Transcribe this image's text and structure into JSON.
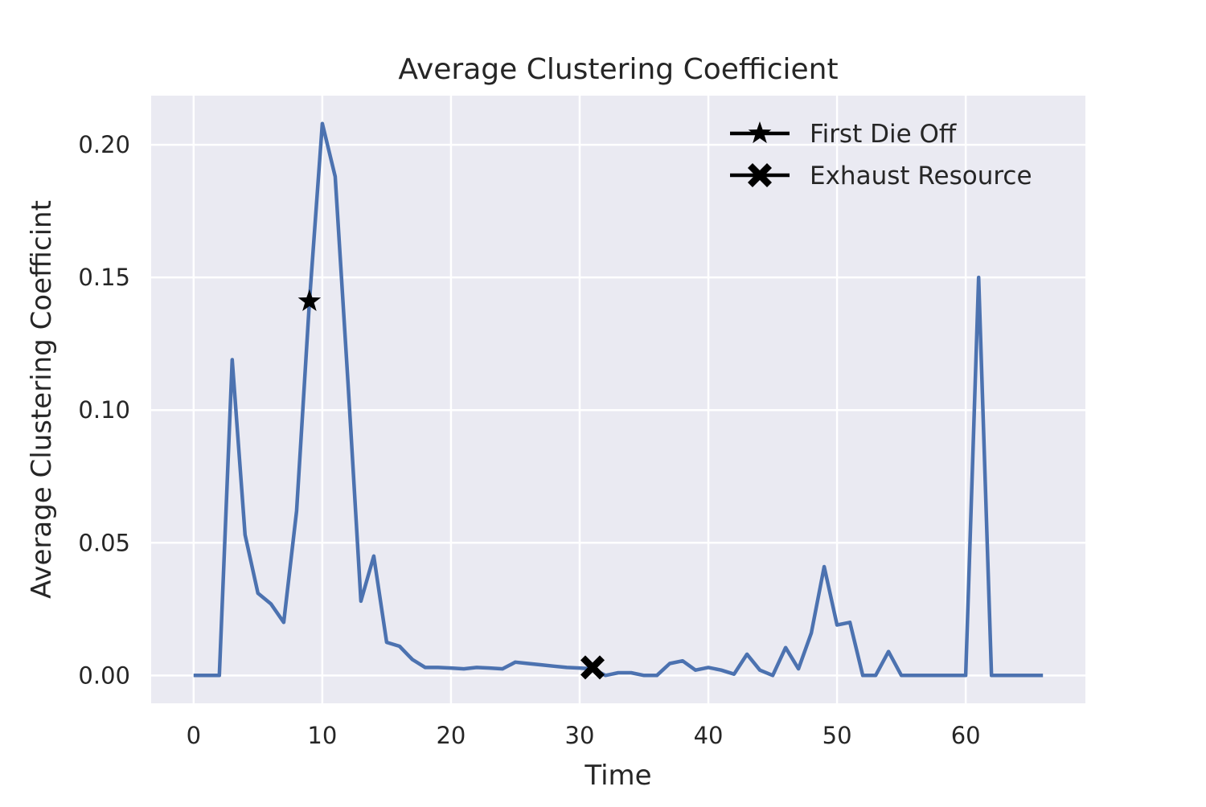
{
  "chart_data": {
    "type": "line",
    "title": "Average Clustering Coefficient",
    "xlabel": "Time",
    "ylabel": "Average Clustering Coefficint",
    "xlim": [
      -3.3,
      69.3
    ],
    "ylim": [
      -0.0105,
      0.2185
    ],
    "xticks": [
      0,
      10,
      20,
      30,
      40,
      50,
      60
    ],
    "xtick_labels": [
      "0",
      "10",
      "20",
      "30",
      "40",
      "50",
      "60"
    ],
    "yticks": [
      0.0,
      0.05,
      0.1,
      0.15,
      0.2
    ],
    "ytick_labels": [
      "0.00",
      "0.05",
      "0.10",
      "0.15",
      "0.20"
    ],
    "grid": true,
    "legend_position": "top-right",
    "colors": {
      "line": "#4c72b0",
      "background": "#eaeaf2",
      "grid": "#ffffff",
      "marker": "#000000"
    },
    "series": [
      {
        "x": [
          0,
          1,
          2,
          3,
          4,
          5,
          6,
          7,
          8,
          9,
          10,
          11,
          12,
          13,
          14,
          15,
          16,
          17,
          18,
          19,
          20,
          21,
          22,
          23,
          24,
          25,
          26,
          27,
          28,
          29,
          30,
          31,
          32,
          33,
          34,
          35,
          36,
          37,
          38,
          39,
          40,
          41,
          42,
          43,
          44,
          45,
          46,
          47,
          48,
          49,
          50,
          51,
          52,
          53,
          54,
          55,
          56,
          57,
          58,
          59,
          60,
          61,
          62,
          63,
          64,
          65,
          66
        ],
        "y": [
          0,
          0,
          0,
          0.119,
          0.053,
          0.031,
          0.027,
          0.02,
          0.062,
          0.141,
          0.208,
          0.188,
          0.11,
          0.028,
          0.045,
          0.0125,
          0.011,
          0.006,
          0.003,
          0.003,
          0.0028,
          0.0025,
          0.003,
          0.0028,
          0.0025,
          0.005,
          0.0045,
          0.004,
          0.0035,
          0.003,
          0.0028,
          0.0025,
          0,
          0.001,
          0.001,
          0,
          0,
          0.0045,
          0.0055,
          0.002,
          0.003,
          0.002,
          0.0005,
          0.008,
          0.002,
          0,
          0.0105,
          0.0025,
          0.016,
          0.041,
          0.019,
          0.02,
          0,
          0,
          0.009,
          0,
          0,
          0,
          0,
          0,
          0,
          0.15,
          0,
          0,
          0,
          0,
          0
        ]
      }
    ],
    "markers": [
      {
        "name": "First Die Off",
        "symbol": "star",
        "x": 9,
        "y": 0.141
      },
      {
        "name": "Exhaust Resource",
        "symbol": "x",
        "x": 31,
        "y": 0.003
      }
    ]
  }
}
